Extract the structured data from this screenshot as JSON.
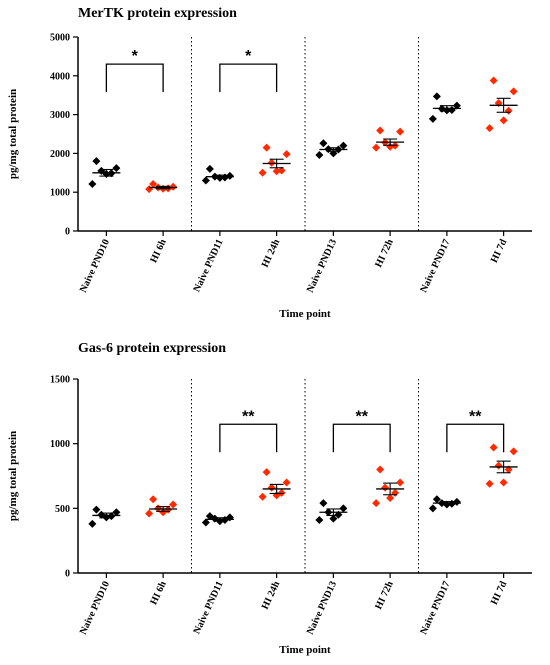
{
  "colors": {
    "naive": "#000000",
    "hi": "#ff2a00"
  },
  "chart_data": [
    {
      "type": "scatter",
      "title": "MerTK protein expression",
      "xlabel": "Time point",
      "ylabel": "pg/mg total protein",
      "ylim": [
        0,
        5000
      ],
      "yticks": [
        "0",
        "1000",
        "2000",
        "3000",
        "4000",
        "5000"
      ],
      "yticks_values": [
        0,
        1000,
        2000,
        3000,
        4000,
        5000
      ],
      "categories": [
        "Naive PND10",
        "HI 6h",
        "Naive PND11",
        "HI 24h",
        "Naive PND13",
        "HI 72h",
        "Naive PND17",
        "HI 7d"
      ],
      "group_dividers_after": [
        2,
        4,
        6
      ],
      "groups": [
        {
          "category": "Naive PND10",
          "color": "naive",
          "mean": 1500,
          "sem": 85,
          "points": [
            1800,
            1620,
            1550,
            1490,
            1470,
            1210
          ]
        },
        {
          "category": "HI 6h",
          "color": "hi",
          "mean": 1120,
          "sem": 30,
          "points": [
            1210,
            1140,
            1120,
            1100,
            1090,
            1080
          ]
        },
        {
          "category": "Naive PND11",
          "color": "naive",
          "mean": 1400,
          "sem": 40,
          "points": [
            1600,
            1420,
            1400,
            1380,
            1370,
            1300
          ]
        },
        {
          "category": "HI 24h",
          "color": "hi",
          "mean": 1740,
          "sem": 110,
          "points": [
            2150,
            1980,
            1760,
            1560,
            1540,
            1500
          ]
        },
        {
          "category": "Naive PND13",
          "color": "naive",
          "mean": 2100,
          "sem": 45,
          "points": [
            2260,
            2200,
            2110,
            2100,
            2000,
            1960
          ]
        },
        {
          "category": "HI 72h",
          "color": "hi",
          "mean": 2290,
          "sem": 80,
          "points": [
            2590,
            2560,
            2280,
            2200,
            2170,
            2150
          ]
        },
        {
          "category": "Naive PND17",
          "color": "naive",
          "mean": 3160,
          "sem": 70,
          "points": [
            3470,
            3230,
            3150,
            3120,
            3110,
            2890
          ]
        },
        {
          "category": "HI 7d",
          "color": "hi",
          "mean": 3240,
          "sem": 180,
          "points": [
            3880,
            3600,
            3300,
            3100,
            2850,
            2650
          ]
        }
      ],
      "significance": [
        {
          "from": 0,
          "to": 1,
          "label": "*",
          "level": 4300
        },
        {
          "from": 2,
          "to": 3,
          "label": "*",
          "level": 4300
        }
      ]
    },
    {
      "type": "scatter",
      "title": "Gas-6 protein expression",
      "xlabel": "Time point",
      "ylabel": "pg/mg total protein",
      "ylim": [
        0,
        1500
      ],
      "yticks": [
        "0",
        "500",
        "1000",
        "1500"
      ],
      "yticks_values": [
        0,
        500,
        1000,
        1500
      ],
      "categories": [
        "Naive PND10",
        "HI 6h",
        "Naive PND11",
        "HI 24h",
        "Naive PND13",
        "HI 72h",
        "Naive PND17",
        "HI 7d"
      ],
      "group_dividers_after": [
        2,
        4,
        6
      ],
      "groups": [
        {
          "category": "Naive PND10",
          "color": "naive",
          "mean": 445,
          "sem": 18,
          "points": [
            490,
            470,
            450,
            440,
            430,
            380
          ]
        },
        {
          "category": "HI 6h",
          "color": "hi",
          "mean": 495,
          "sem": 18,
          "points": [
            570,
            530,
            500,
            490,
            470,
            460
          ]
        },
        {
          "category": "Naive PND11",
          "color": "naive",
          "mean": 415,
          "sem": 12,
          "points": [
            440,
            430,
            420,
            410,
            400,
            390
          ]
        },
        {
          "category": "HI 24h",
          "color": "hi",
          "mean": 650,
          "sem": 35,
          "points": [
            780,
            700,
            660,
            620,
            600,
            590
          ]
        },
        {
          "category": "Naive PND13",
          "color": "naive",
          "mean": 470,
          "sem": 25,
          "points": [
            540,
            500,
            470,
            450,
            420,
            410
          ]
        },
        {
          "category": "HI 72h",
          "color": "hi",
          "mean": 650,
          "sem": 45,
          "points": [
            800,
            700,
            660,
            620,
            580,
            540
          ]
        },
        {
          "category": "Naive PND17",
          "color": "naive",
          "mean": 540,
          "sem": 12,
          "points": [
            570,
            550,
            540,
            535,
            530,
            500
          ]
        },
        {
          "category": "HI 7d",
          "color": "hi",
          "mean": 820,
          "sem": 45,
          "points": [
            970,
            940,
            830,
            800,
            700,
            690
          ]
        }
      ],
      "significance": [
        {
          "from": 2,
          "to": 3,
          "label": "**",
          "level": 1150
        },
        {
          "from": 4,
          "to": 5,
          "label": "**",
          "level": 1150
        },
        {
          "from": 6,
          "to": 7,
          "label": "**",
          "level": 1150
        }
      ]
    }
  ]
}
